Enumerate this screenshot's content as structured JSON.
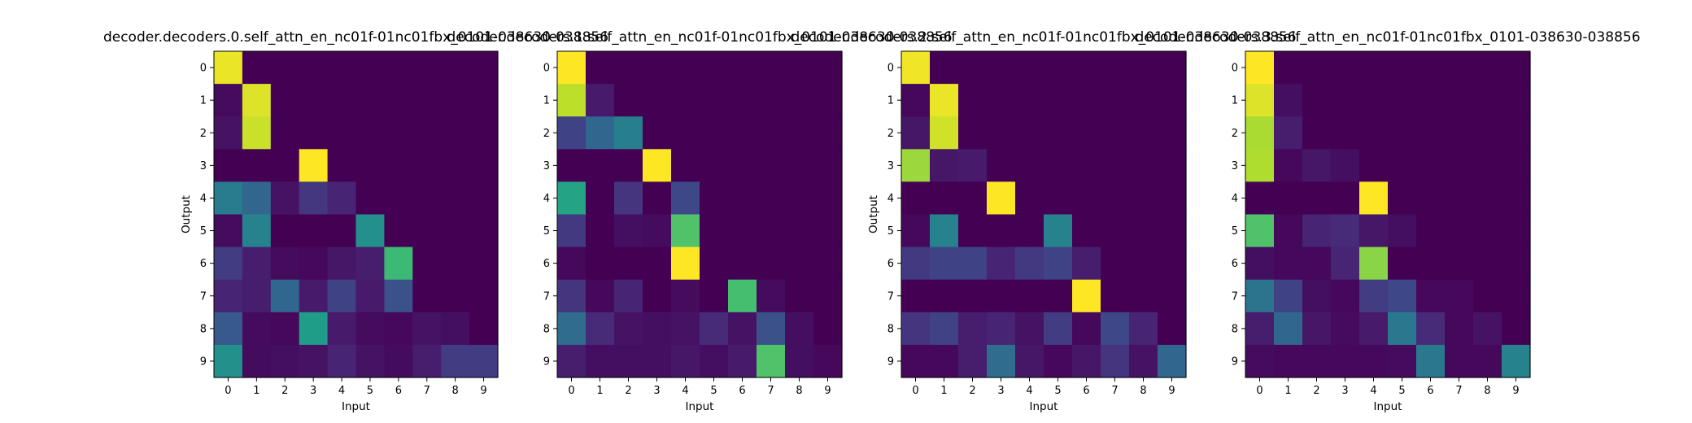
{
  "figure": {
    "background": "#ffffff"
  },
  "colormap": {
    "name": "viridis",
    "stops": [
      "#440154",
      "#482878",
      "#3e4989",
      "#31688e",
      "#26828e",
      "#1f9e89",
      "#35b779",
      "#6ece58",
      "#b5de2b",
      "#fde725"
    ]
  },
  "chart_data": [
    {
      "type": "heatmap",
      "title": "decoder.decoders.0.self_attn_en_nc01f-01nc01fbx_0101-038630-038856",
      "xlabel": "Input",
      "ylabel": "Output",
      "x_ticks": [
        "0",
        "1",
        "2",
        "3",
        "4",
        "5",
        "6",
        "7",
        "8",
        "9"
      ],
      "y_ticks": [
        "0",
        "1",
        "2",
        "3",
        "4",
        "5",
        "6",
        "7",
        "8",
        "9"
      ],
      "zlim": [
        0,
        1
      ],
      "values": [
        [
          0.97,
          0,
          0,
          0,
          0,
          0,
          0,
          0,
          0,
          0
        ],
        [
          0.03,
          0.95,
          0,
          0,
          0,
          0,
          0,
          0,
          0,
          0
        ],
        [
          0.05,
          0.92,
          0,
          0,
          0,
          0,
          0,
          0,
          0,
          0
        ],
        [
          0,
          0,
          0,
          1.0,
          0,
          0,
          0,
          0,
          0,
          0
        ],
        [
          0.42,
          0.33,
          0.05,
          0.16,
          0.1,
          0,
          0,
          0,
          0,
          0
        ],
        [
          0.03,
          0.45,
          0,
          0,
          0,
          0.5,
          0,
          0,
          0,
          0
        ],
        [
          0.18,
          0.08,
          0.03,
          0.02,
          0.06,
          0.08,
          0.68,
          0,
          0,
          0
        ],
        [
          0.1,
          0.08,
          0.33,
          0.07,
          0.2,
          0.07,
          0.25,
          0,
          0,
          0
        ],
        [
          0.28,
          0.03,
          0.02,
          0.55,
          0.07,
          0.03,
          0.02,
          0.05,
          0.04,
          0
        ],
        [
          0.5,
          0.03,
          0.04,
          0.05,
          0.1,
          0.05,
          0.03,
          0.08,
          0.18,
          0.18
        ]
      ]
    },
    {
      "type": "heatmap",
      "title": "decoder.decoders.1.self_attn_en_nc01f-01nc01fbx_0101-038630-038856",
      "xlabel": "Input",
      "ylabel": "",
      "x_ticks": [
        "0",
        "1",
        "2",
        "3",
        "4",
        "5",
        "6",
        "7",
        "8",
        "9"
      ],
      "y_ticks": [
        "0",
        "1",
        "2",
        "3",
        "4",
        "5",
        "6",
        "7",
        "8",
        "9"
      ],
      "zlim": [
        0,
        1
      ],
      "values": [
        [
          1.0,
          0,
          0,
          0,
          0,
          0,
          0,
          0,
          0,
          0
        ],
        [
          0.9,
          0.07,
          0,
          0,
          0,
          0,
          0,
          0,
          0,
          0
        ],
        [
          0.2,
          0.33,
          0.43,
          0,
          0,
          0,
          0,
          0,
          0,
          0
        ],
        [
          0,
          0,
          0,
          1.0,
          0,
          0,
          0,
          0,
          0,
          0
        ],
        [
          0.58,
          0,
          0.15,
          0,
          0.22,
          0,
          0,
          0,
          0,
          0
        ],
        [
          0.17,
          0,
          0.04,
          0.03,
          0.72,
          0,
          0,
          0,
          0,
          0
        ],
        [
          0.02,
          0,
          0,
          0,
          1.0,
          0,
          0,
          0,
          0,
          0
        ],
        [
          0.15,
          0.02,
          0.1,
          0,
          0.03,
          0,
          0.7,
          0.03,
          0,
          0
        ],
        [
          0.35,
          0.12,
          0.05,
          0.04,
          0.05,
          0.12,
          0.05,
          0.25,
          0.04,
          0
        ],
        [
          0.08,
          0.04,
          0.04,
          0.04,
          0.06,
          0.04,
          0.07,
          0.72,
          0.04,
          0.02
        ]
      ]
    },
    {
      "type": "heatmap",
      "title": "decoder.decoders.2.self_attn_en_nc01f-01nc01fbx_0101-038630-038856",
      "xlabel": "Input",
      "ylabel": "Output",
      "x_ticks": [
        "0",
        "1",
        "2",
        "3",
        "4",
        "5",
        "6",
        "7",
        "8",
        "9"
      ],
      "y_ticks": [
        "0",
        "1",
        "2",
        "3",
        "4",
        "5",
        "6",
        "7",
        "8",
        "9"
      ],
      "zlim": [
        0,
        1
      ],
      "values": [
        [
          0.98,
          0,
          0,
          0,
          0,
          0,
          0,
          0,
          0,
          0
        ],
        [
          0.02,
          0.97,
          0,
          0,
          0,
          0,
          0,
          0,
          0,
          0
        ],
        [
          0.06,
          0.93,
          0,
          0,
          0,
          0,
          0,
          0,
          0,
          0
        ],
        [
          0.85,
          0.06,
          0.07,
          0,
          0,
          0,
          0,
          0,
          0,
          0
        ],
        [
          0,
          0,
          0,
          1.0,
          0,
          0,
          0,
          0,
          0,
          0
        ],
        [
          0.02,
          0.45,
          0,
          0,
          0,
          0.45,
          0,
          0,
          0,
          0
        ],
        [
          0.17,
          0.2,
          0.2,
          0.1,
          0.17,
          0.2,
          0.08,
          0,
          0,
          0
        ],
        [
          0,
          0,
          0,
          0,
          0,
          0,
          1.0,
          0,
          0,
          0
        ],
        [
          0.15,
          0.2,
          0.08,
          0.1,
          0.05,
          0.18,
          0.02,
          0.22,
          0.1,
          0
        ],
        [
          0.02,
          0.02,
          0.08,
          0.35,
          0.06,
          0.02,
          0.06,
          0.15,
          0.05,
          0.33
        ]
      ]
    },
    {
      "type": "heatmap",
      "title": "decoder.decoders.3.self_attn_en_nc01f-01nc01fbx_0101-038630-038856",
      "xlabel": "Input",
      "ylabel": "",
      "x_ticks": [
        "0",
        "1",
        "2",
        "3",
        "4",
        "5",
        "6",
        "7",
        "8",
        "9"
      ],
      "y_ticks": [
        "0",
        "1",
        "2",
        "3",
        "4",
        "5",
        "6",
        "7",
        "8",
        "9"
      ],
      "zlim": [
        0,
        1
      ],
      "values": [
        [
          1.0,
          0,
          0,
          0,
          0,
          0,
          0,
          0,
          0,
          0
        ],
        [
          0.95,
          0.04,
          0,
          0,
          0,
          0,
          0,
          0,
          0,
          0
        ],
        [
          0.87,
          0.08,
          0,
          0,
          0,
          0,
          0,
          0,
          0,
          0
        ],
        [
          0.88,
          0.02,
          0.06,
          0.04,
          0,
          0,
          0,
          0,
          0,
          0
        ],
        [
          0,
          0,
          0,
          0,
          1.0,
          0,
          0,
          0,
          0,
          0
        ],
        [
          0.72,
          0.02,
          0.1,
          0.12,
          0.06,
          0.04,
          0,
          0,
          0,
          0
        ],
        [
          0.04,
          0.02,
          0.02,
          0.1,
          0.82,
          0,
          0,
          0,
          0,
          0
        ],
        [
          0.38,
          0.2,
          0.04,
          0.02,
          0.18,
          0.22,
          0.02,
          0.02,
          0,
          0
        ],
        [
          0.08,
          0.33,
          0.06,
          0.03,
          0.07,
          0.4,
          0.12,
          0.02,
          0.05,
          0
        ],
        [
          0.03,
          0.02,
          0.02,
          0.02,
          0.02,
          0.03,
          0.4,
          0.02,
          0.02,
          0.45
        ]
      ]
    }
  ]
}
